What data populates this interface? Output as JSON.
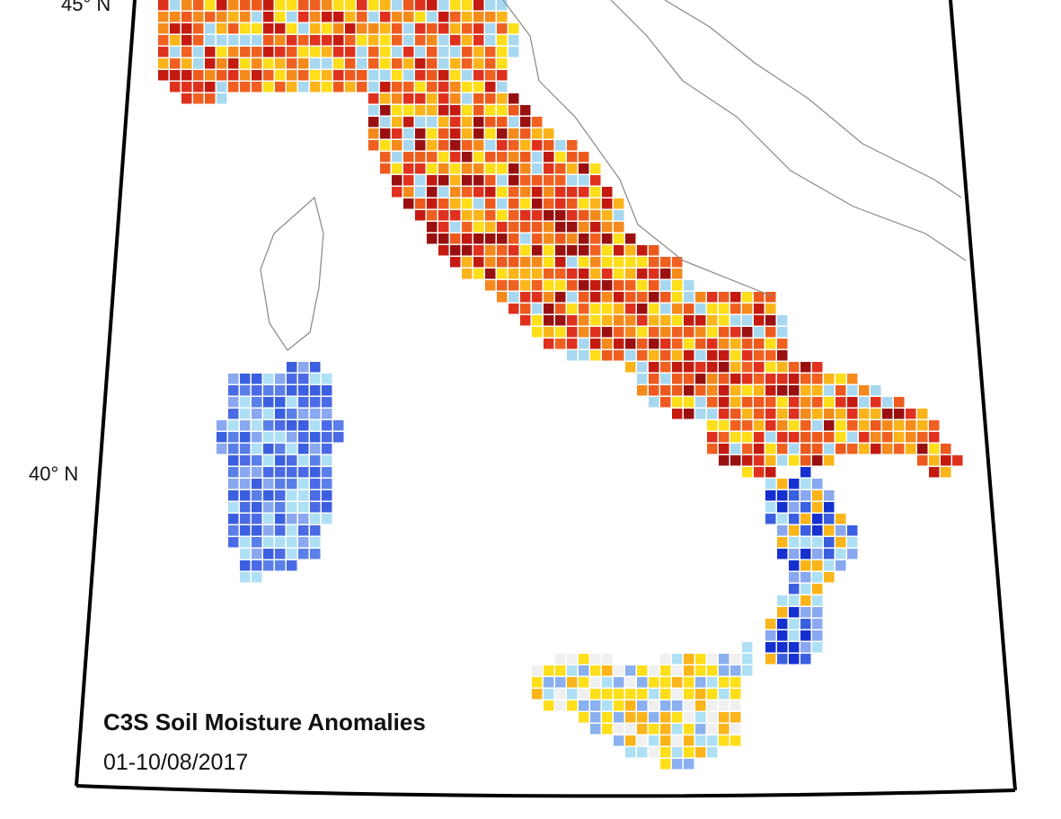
{
  "map": {
    "title": "C3S Soil Moisture Anomalies",
    "subtitle": "01-10/08/2017",
    "latitude_labels": [
      "45° N",
      "40° N"
    ]
  }
}
